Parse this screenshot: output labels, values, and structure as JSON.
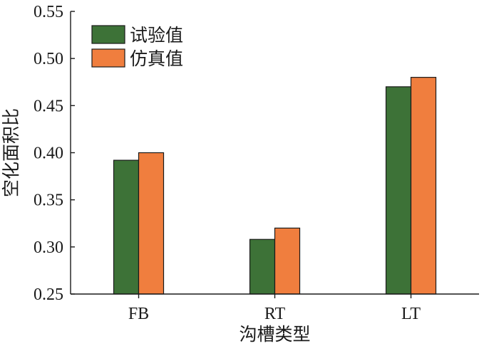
{
  "chart_data": {
    "type": "bar",
    "title": "",
    "xlabel": "沟槽类型",
    "ylabel": "空化面积比",
    "categories": [
      "FB",
      "RT",
      "LT"
    ],
    "series": [
      {
        "name": "试验值",
        "color": "#3d7237",
        "values": [
          0.392,
          0.308,
          0.47
        ]
      },
      {
        "name": "仿真值",
        "color": "#f07e3e",
        "values": [
          0.4,
          0.32,
          0.48
        ]
      }
    ],
    "ylim": [
      0.25,
      0.55
    ],
    "yticks": [
      "0.25",
      "0.30",
      "0.35",
      "0.40",
      "0.45",
      "0.50",
      "0.55"
    ],
    "grid": false,
    "legend": "top-left"
  }
}
